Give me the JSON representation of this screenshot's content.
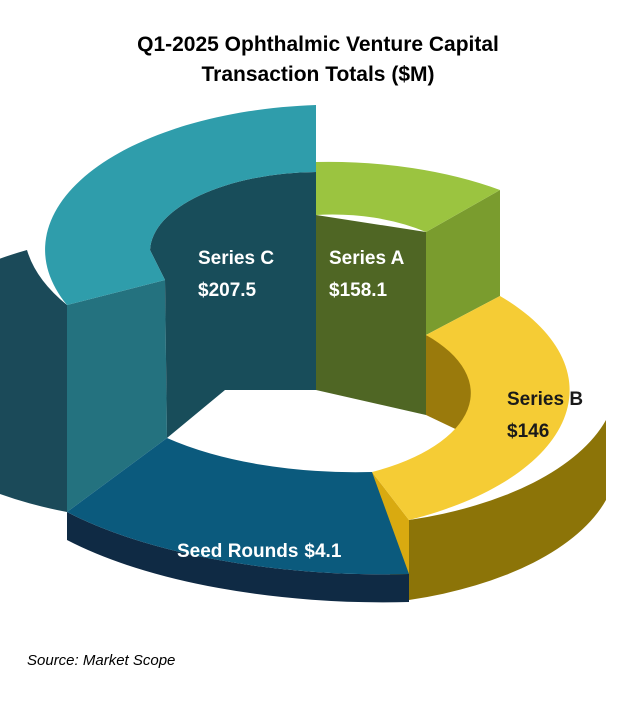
{
  "title": {
    "line1": "Q1-2025 Ophthalmic Venture Capital",
    "line2": "Transaction Totals ($M)"
  },
  "chart_data": {
    "type": "pie",
    "style": "3d-donut",
    "title": "Q1-2025 Ophthalmic Venture Capital Transaction Totals ($M)",
    "unit": "$M",
    "categories": [
      "Series A",
      "Series B",
      "Seed Rounds",
      "Series C"
    ],
    "values": [
      158.1,
      146,
      4.1,
      207.5
    ],
    "labels": [
      {
        "name": "Series A",
        "value": "$158.1"
      },
      {
        "name": "Series B",
        "value": "$146"
      },
      {
        "name": "Seed Rounds",
        "value": "$4.1"
      },
      {
        "name": "Series C",
        "value": "$207.5"
      }
    ],
    "colors": {
      "Series A": "#9bc440",
      "Series B": "#f5cc35",
      "Seed Rounds": "#0b5a7d",
      "Series C": "#2f9dab"
    },
    "legend": "none"
  },
  "source": "Source: Market Scope"
}
